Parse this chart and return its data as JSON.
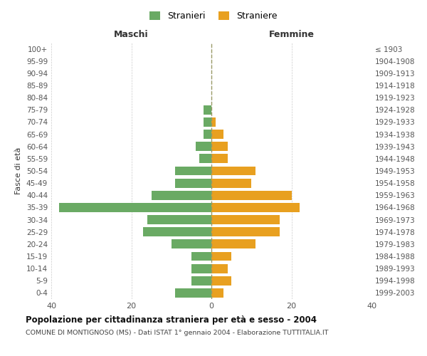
{
  "age_groups": [
    "100+",
    "95-99",
    "90-94",
    "85-89",
    "80-84",
    "75-79",
    "70-74",
    "65-69",
    "60-64",
    "55-59",
    "50-54",
    "45-49",
    "40-44",
    "35-39",
    "30-34",
    "25-29",
    "20-24",
    "15-19",
    "10-14",
    "5-9",
    "0-4"
  ],
  "birth_years": [
    "≤ 1903",
    "1904-1908",
    "1909-1913",
    "1914-1918",
    "1919-1923",
    "1924-1928",
    "1929-1933",
    "1934-1938",
    "1939-1943",
    "1944-1948",
    "1949-1953",
    "1954-1958",
    "1959-1963",
    "1964-1968",
    "1969-1973",
    "1974-1978",
    "1979-1983",
    "1984-1988",
    "1989-1993",
    "1994-1998",
    "1999-2003"
  ],
  "males": [
    0,
    0,
    0,
    0,
    0,
    2,
    2,
    2,
    4,
    3,
    9,
    9,
    15,
    38,
    16,
    17,
    10,
    5,
    5,
    5,
    9
  ],
  "females": [
    0,
    0,
    0,
    0,
    0,
    0,
    1,
    3,
    4,
    4,
    11,
    10,
    20,
    22,
    17,
    17,
    11,
    5,
    4,
    5,
    3
  ],
  "male_color": "#6aaa64",
  "female_color": "#e8a020",
  "background_color": "#ffffff",
  "grid_color": "#cccccc",
  "title": "Popolazione per cittadinanza straniera per età e sesso - 2004",
  "subtitle": "COMUNE DI MONTIGNOSO (MS) - Dati ISTAT 1° gennaio 2004 - Elaborazione TUTTITALIA.IT",
  "xlabel_left": "Maschi",
  "xlabel_right": "Femmine",
  "ylabel_left": "Fasce di età",
  "legend_stranieri": "Stranieri",
  "legend_straniere": "Straniere",
  "xlim": 40,
  "bar_height": 0.75
}
